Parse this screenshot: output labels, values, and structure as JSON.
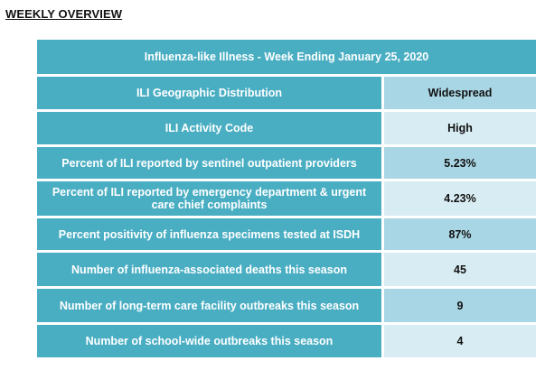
{
  "heading": "WEEKLY OVERVIEW",
  "table": {
    "title": "Influenza-like Illness - Week Ending January 25, 2020",
    "rows": [
      {
        "label": "ILI Geographic Distribution",
        "value": "Widespread"
      },
      {
        "label": "ILI Activity Code",
        "value": "High"
      },
      {
        "label": "Percent of ILI reported by sentinel outpatient providers",
        "value": "5.23%"
      },
      {
        "label": "Percent of ILI reported by emergency department & urgent care chief complaints",
        "value": "4.23%"
      },
      {
        "label": "Percent positivity of influenza specimens tested at ISDH",
        "value": "87%"
      },
      {
        "label": "Number of influenza-associated deaths this season",
        "value": "45"
      },
      {
        "label": "Number of long-term care facility outbreaks this season",
        "value": "9"
      },
      {
        "label": "Number of school-wide outbreaks this season",
        "value": "4"
      }
    ]
  },
  "colors": {
    "header_teal": "#4aaec3",
    "value_dark": "#a9d6e4",
    "value_light": "#d8edf3"
  }
}
